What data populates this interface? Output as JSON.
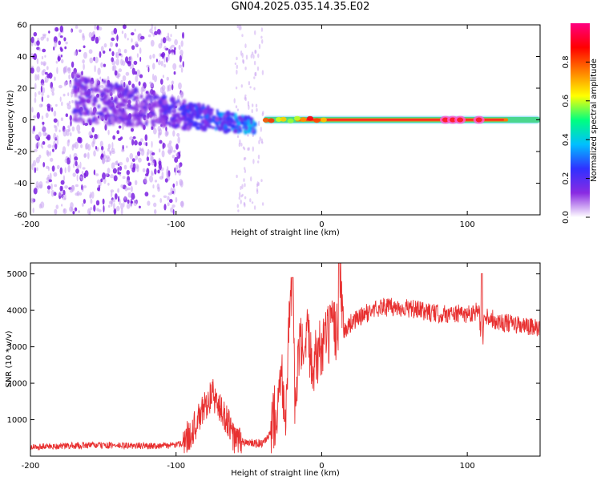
{
  "title": "GN04.2025.035.14.35.E02",
  "chart_data": [
    {
      "type": "heatmap",
      "name": "spectrogram",
      "xlabel": "Height of straight line (km)",
      "ylabel": "Frequency (Hz)",
      "xlim": [
        -200,
        150
      ],
      "ylim": [
        -60,
        60
      ],
      "xticks": [
        -200,
        -100,
        0,
        100
      ],
      "yticks": [
        -60,
        -40,
        -20,
        0,
        20,
        40,
        60
      ],
      "colorbar": {
        "label": "Normalized spectral amplitude",
        "range": [
          0.0,
          1.0
        ],
        "ticks": [
          0.0,
          0.2,
          0.4,
          0.6,
          0.8
        ],
        "colors": [
          "#ffffff",
          "#8a2be2",
          "#3030ff",
          "#00bfff",
          "#00ff80",
          "#ffff00",
          "#ff8000",
          "#ff0000",
          "#ff0080"
        ]
      },
      "features": {
        "scatter_region_x": [
          -200,
          -95
        ],
        "scatter_region_y": [
          -60,
          60
        ],
        "isolated_column_x": [
          -60,
          -40
        ],
        "track_start": {
          "x": -170,
          "y": 14
        },
        "track_converge": {
          "x": -45,
          "y": -4
        },
        "line_x": [
          -40,
          150
        ],
        "line_y": 0,
        "hot_spots_x": [
          85,
          90,
          95,
          108
        ]
      }
    },
    {
      "type": "line",
      "name": "snr",
      "xlabel": "Height of straight line (km)",
      "ylabel": "SNR (10 * v/v)",
      "xlim": [
        -200,
        150
      ],
      "ylim": [
        0,
        5300
      ],
      "xticks": [
        -200,
        -100,
        0,
        100
      ],
      "yticks": [
        1000,
        2000,
        3000,
        4000,
        5000
      ],
      "color": "#e83030",
      "series_x": [
        -200,
        -160,
        -120,
        -100,
        -95,
        -90,
        -85,
        -80,
        -75,
        -70,
        -65,
        -60,
        -50,
        -40,
        -35,
        -30,
        -28,
        -25,
        -22,
        -20,
        -18,
        -16,
        -14,
        -12,
        -10,
        -5,
        0,
        5,
        10,
        12,
        13,
        15,
        20,
        30,
        40,
        60,
        80,
        100,
        108,
        110,
        112,
        120,
        140,
        150
      ],
      "series_y": [
        250,
        300,
        280,
        300,
        380,
        650,
        950,
        1400,
        1700,
        1300,
        1000,
        450,
        350,
        350,
        600,
        1600,
        2400,
        1200,
        3800,
        4700,
        900,
        2800,
        3000,
        2300,
        3200,
        2600,
        3000,
        3300,
        3500,
        3700,
        5200,
        3400,
        3650,
        3900,
        4100,
        4050,
        3900,
        3900,
        4000,
        2900,
        3900,
        3700,
        3550,
        3500
      ],
      "spikes": [
        {
          "x": -20,
          "y": 4900
        },
        {
          "x": 12,
          "y": 5300
        },
        {
          "x": 110,
          "y": 5000
        }
      ]
    }
  ]
}
